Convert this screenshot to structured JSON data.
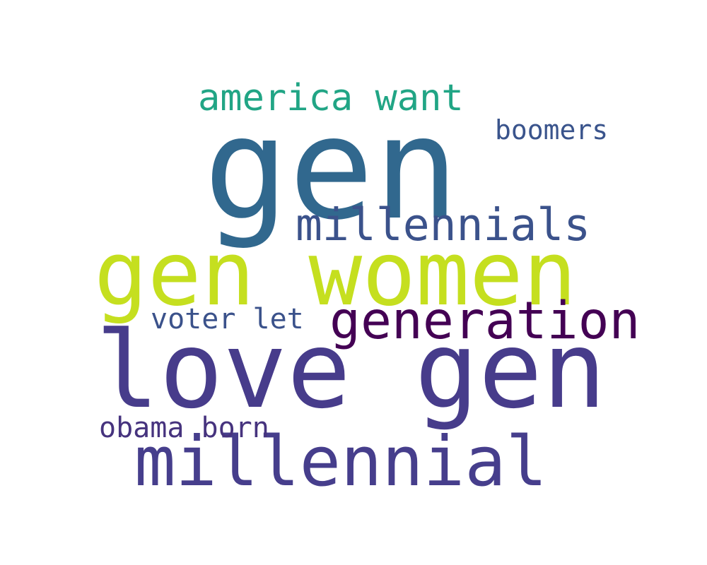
{
  "words": [
    {
      "text": "gen",
      "color": "#31688e"
    },
    {
      "text": "gen women",
      "color": "#c5df1f"
    },
    {
      "text": "love gen",
      "color": "#473c8b"
    },
    {
      "text": "millennial",
      "color": "#463e8c"
    },
    {
      "text": "generation",
      "color": "#440154"
    },
    {
      "text": "millennials",
      "color": "#3b528b"
    },
    {
      "text": "america want",
      "color": "#21a585"
    },
    {
      "text": "boomers",
      "color": "#3a548c"
    },
    {
      "text": "voter let",
      "color": "#3b528b"
    },
    {
      "text": "obama born",
      "color": "#46337e"
    }
  ]
}
